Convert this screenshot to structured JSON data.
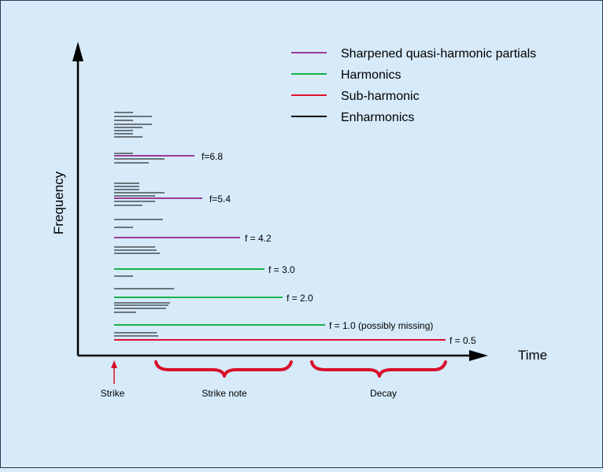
{
  "axes": {
    "y_label": "Frequency",
    "x_label": "Time"
  },
  "legend": [
    {
      "label": "Sharpened quasi-harmonic partials",
      "color": "#9b3a98"
    },
    {
      "label": "Harmonics",
      "color": "#16b34a"
    },
    {
      "label": "Sub-harmonic",
      "color": "#e0102c"
    },
    {
      "label": "Enharmonics",
      "color": "#000000"
    }
  ],
  "partials": [
    {
      "label": "f=6.8",
      "kind": "Sharpened quasi-harmonic partials"
    },
    {
      "label": "f=5.4",
      "kind": "Sharpened quasi-harmonic partials"
    },
    {
      "label": "f = 4.2",
      "kind": "Sharpened quasi-harmonic partials"
    },
    {
      "label": "f = 3.0",
      "kind": "Harmonics"
    },
    {
      "label": "f = 2.0",
      "kind": "Harmonics"
    },
    {
      "label": "f = 1.0 (possibly missing)",
      "kind": "Harmonics"
    },
    {
      "label": "f = 0.5",
      "kind": "Sub-harmonic"
    }
  ],
  "phases": {
    "strike": "Strike",
    "strike_note": "Strike note",
    "decay": "Decay"
  },
  "colors": {
    "background": "#d6eafa",
    "axis": "#000000",
    "brace": "#d8102a",
    "strike_arrow": "#d8102a"
  }
}
